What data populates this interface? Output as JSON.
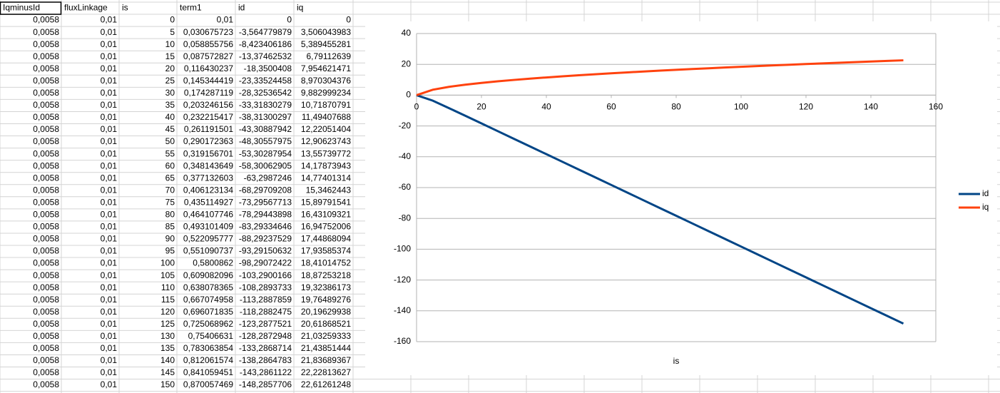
{
  "table": {
    "header": [
      "IqminusId",
      "fluxLinkage",
      "is",
      "term1",
      "id",
      "iq"
    ],
    "rows": [
      [
        "0,0058",
        "0,01",
        "0",
        "0,01",
        "0",
        "0"
      ],
      [
        "0,0058",
        "0,01",
        "5",
        "0,030675723",
        "-3,564779879",
        "3,506043983"
      ],
      [
        "0,0058",
        "0,01",
        "10",
        "0,058855756",
        "-8,423406186",
        "5,389455281"
      ],
      [
        "0,0058",
        "0,01",
        "15",
        "0,087572827",
        "-13,37462532",
        "6,79112639"
      ],
      [
        "0,0058",
        "0,01",
        "20",
        "0,116430237",
        "-18,3500408",
        "7,954621471"
      ],
      [
        "0,0058",
        "0,01",
        "25",
        "0,145344419",
        "-23,33524458",
        "8,970304376"
      ],
      [
        "0,0058",
        "0,01",
        "30",
        "0,174287119",
        "-28,32536542",
        "9,882999234"
      ],
      [
        "0,0058",
        "0,01",
        "35",
        "0,203246156",
        "-33,31830279",
        "10,71870791"
      ],
      [
        "0,0058",
        "0,01",
        "40",
        "0,232215417",
        "-38,31300297",
        "11,49407688"
      ],
      [
        "0,0058",
        "0,01",
        "45",
        "0,261191501",
        "-43,30887942",
        "12,22051404"
      ],
      [
        "0,0058",
        "0,01",
        "50",
        "0,290172363",
        "-48,30557975",
        "12,90623743"
      ],
      [
        "0,0058",
        "0,01",
        "55",
        "0,319156701",
        "-53,30287954",
        "13,55739772"
      ],
      [
        "0,0058",
        "0,01",
        "60",
        "0,348143649",
        "-58,30062905",
        "14,17873943"
      ],
      [
        "0,0058",
        "0,01",
        "65",
        "0,377132603",
        "-63,2987246",
        "14,77401314"
      ],
      [
        "0,0058",
        "0,01",
        "70",
        "0,406123134",
        "-68,29709208",
        "15,3462443"
      ],
      [
        "0,0058",
        "0,01",
        "75",
        "0,435114927",
        "-73,29567713",
        "15,89791541"
      ],
      [
        "0,0058",
        "0,01",
        "80",
        "0,464107746",
        "-78,29443898",
        "16,43109321"
      ],
      [
        "0,0058",
        "0,01",
        "85",
        "0,493101409",
        "-83,29334646",
        "16,94752006"
      ],
      [
        "0,0058",
        "0,01",
        "90",
        "0,522095777",
        "-88,29237529",
        "17,44868094"
      ],
      [
        "0,0058",
        "0,01",
        "95",
        "0,551090737",
        "-93,29150632",
        "17,93585374"
      ],
      [
        "0,0058",
        "0,01",
        "100",
        "0,5800862",
        "-98,29072422",
        "18,41014752"
      ],
      [
        "0,0058",
        "0,01",
        "105",
        "0,609082096",
        "-103,2900166",
        "18,87253218"
      ],
      [
        "0,0058",
        "0,01",
        "110",
        "0,638078365",
        "-108,2893733",
        "19,32386173"
      ],
      [
        "0,0058",
        "0,01",
        "115",
        "0,667074958",
        "-113,2887859",
        "19,76489276"
      ],
      [
        "0,0058",
        "0,01",
        "120",
        "0,696071835",
        "-118,2882475",
        "20,19629938"
      ],
      [
        "0,0058",
        "0,01",
        "125",
        "0,725068962",
        "-123,2877521",
        "20,61868521"
      ],
      [
        "0,0058",
        "0,01",
        "130",
        "0,75406631",
        "-128,2872948",
        "21,03259333"
      ],
      [
        "0,0058",
        "0,01",
        "135",
        "0,783063854",
        "-133,2868714",
        "21,43851444"
      ],
      [
        "0,0058",
        "0,01",
        "140",
        "0,812061574",
        "-138,2864783",
        "21,83689367"
      ],
      [
        "0,0058",
        "0,01",
        "145",
        "0,841059451",
        "-143,2861122",
        "22,22813627"
      ],
      [
        "0,0058",
        "0,01",
        "150",
        "0,870057469",
        "-148,2857706",
        "22,61261248"
      ]
    ]
  },
  "chart_data": {
    "type": "line",
    "x_label": "is",
    "x": [
      0,
      5,
      10,
      15,
      20,
      25,
      30,
      35,
      40,
      45,
      50,
      55,
      60,
      65,
      70,
      75,
      80,
      85,
      90,
      95,
      100,
      105,
      110,
      115,
      120,
      125,
      130,
      135,
      140,
      145,
      150
    ],
    "series": [
      {
        "name": "id",
        "color": "#004586",
        "values": [
          0,
          -3.56,
          -8.42,
          -13.37,
          -18.35,
          -23.34,
          -28.33,
          -33.32,
          -38.31,
          -43.31,
          -48.31,
          -53.3,
          -58.3,
          -63.3,
          -68.3,
          -73.3,
          -78.29,
          -83.29,
          -88.29,
          -93.29,
          -98.29,
          -103.29,
          -108.29,
          -113.29,
          -118.29,
          -123.29,
          -128.29,
          -133.29,
          -138.29,
          -143.29,
          -148.29
        ]
      },
      {
        "name": "iq",
        "color": "#ff420e",
        "values": [
          0,
          3.51,
          5.39,
          6.79,
          7.95,
          8.97,
          9.88,
          10.72,
          11.49,
          12.22,
          12.91,
          13.56,
          14.18,
          14.77,
          15.35,
          15.9,
          16.43,
          16.95,
          17.45,
          17.94,
          18.41,
          18.87,
          19.32,
          19.76,
          20.2,
          20.62,
          21.03,
          21.44,
          21.84,
          22.23,
          22.61
        ]
      }
    ],
    "xlim": [
      0,
      160
    ],
    "xticks": [
      0,
      20,
      40,
      60,
      80,
      100,
      120,
      140,
      160
    ],
    "ylim": [
      -160,
      40
    ],
    "yticks": [
      -160,
      -140,
      -120,
      -100,
      -80,
      -60,
      -40,
      -20,
      0,
      20,
      40
    ],
    "grid": true,
    "legend": "right"
  }
}
